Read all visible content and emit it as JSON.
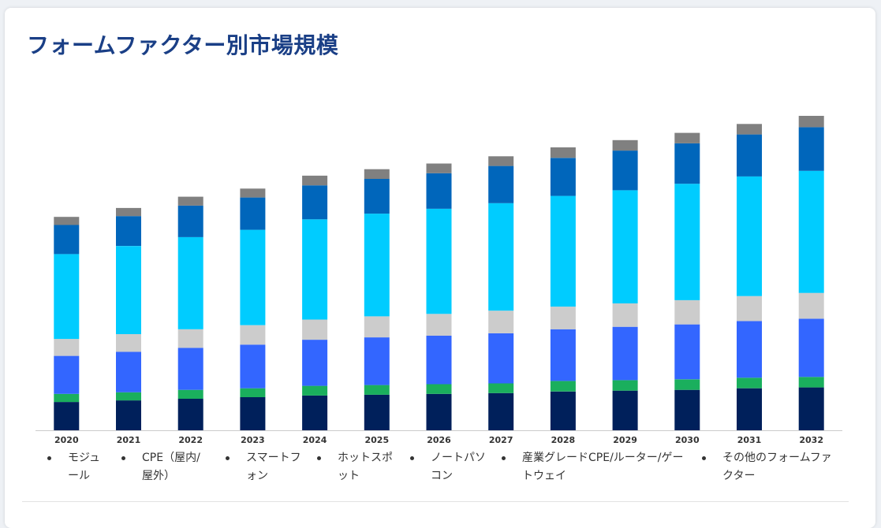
{
  "title": "フォームファクター別市場規模",
  "colors": {
    "background": "#ffffff",
    "title": "#1a3f86",
    "axis": "#cccccc",
    "tick_text": "#333333"
  },
  "chart_data": {
    "type": "bar",
    "stacked": true,
    "title": "フォームファクター別市場規模",
    "xlabel": "",
    "ylabel": "",
    "ylim": [
      0,
      390
    ],
    "grid": false,
    "legend_position": "bottom",
    "categories": [
      "2020",
      "2021",
      "2022",
      "2023",
      "2024",
      "2025",
      "2026",
      "2027",
      "2028",
      "2029",
      "2030",
      "2031",
      "2032"
    ],
    "series": [
      {
        "name": "モジュール",
        "color": "#00205b",
        "values": [
          35,
          37,
          39,
          41,
          43,
          44,
          45,
          46,
          48,
          49,
          50,
          52,
          53
        ]
      },
      {
        "name": "CPE（屋内/屋外）",
        "color": "#1aaf5d",
        "values": [
          10,
          10,
          11,
          11,
          12,
          12,
          12,
          12,
          13,
          13,
          13,
          13,
          13
        ]
      },
      {
        "name": "スマートフォン",
        "color": "#3366ff",
        "values": [
          47,
          50,
          52,
          54,
          57,
          59,
          60,
          62,
          64,
          66,
          68,
          70,
          72
        ]
      },
      {
        "name": "ホットスポット",
        "color": "#cccccc",
        "values": [
          21,
          22,
          23,
          24,
          25,
          26,
          27,
          28,
          28,
          29,
          30,
          31,
          32
        ]
      },
      {
        "name": "ノートパソコン",
        "color": "#00ccff",
        "values": [
          105,
          109,
          114,
          118,
          124,
          127,
          130,
          133,
          137,
          140,
          144,
          148,
          151
        ]
      },
      {
        "name": "産業グレードCPE/ルーター/ゲートウェイ",
        "color": "#0066bb",
        "values": [
          36,
          37,
          39,
          40,
          42,
          43,
          44,
          46,
          47,
          49,
          50,
          52,
          54
        ]
      },
      {
        "name": "その他のフォームファクター",
        "color": "#808080",
        "values": [
          10,
          10,
          11,
          11,
          12,
          12,
          12,
          12,
          13,
          13,
          13,
          13,
          14
        ]
      }
    ]
  },
  "legend": [
    "モジュール",
    "CPE（屋内/屋外）",
    "スマートフォン",
    "ホットスポット",
    "ノートパソコン",
    "産業グレードCPE/ルーター/ゲートウェイ",
    "その他のフォームファクター"
  ]
}
